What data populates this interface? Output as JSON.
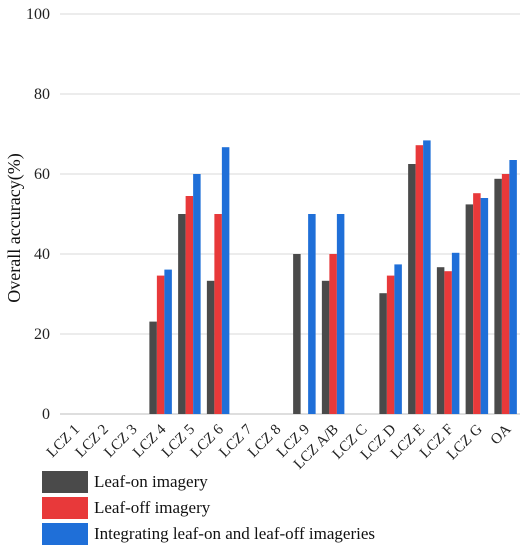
{
  "chart_data": {
    "type": "bar",
    "title": "",
    "xlabel": "",
    "ylabel": "Overall accuracy(%)",
    "ylim": [
      0,
      100
    ],
    "yticks": [
      0,
      20,
      40,
      60,
      80,
      100
    ],
    "grid": "horizontal",
    "legend_position": "bottom-left",
    "categories": [
      "LCZ 1",
      "LCZ 2",
      "LCZ 3",
      "LCZ 4",
      "LCZ 5",
      "LCZ 6",
      "LCZ 7",
      "LCZ 8",
      "LCZ 9",
      "LCZ A/B",
      "LCZ C",
      "LCZ D",
      "LCZ E",
      "LCZ F",
      "LCZ G",
      "OA"
    ],
    "series": [
      {
        "name": "Leaf-on imagery",
        "color": "#4a4a4a",
        "values": [
          0,
          0,
          0,
          23.1,
          50.0,
          33.3,
          0,
          0,
          40.0,
          33.3,
          0,
          30.2,
          62.5,
          36.7,
          52.4,
          58.8
        ]
      },
      {
        "name": "Leaf-off imagery",
        "color": "#e8393a",
        "values": [
          0,
          0,
          0,
          34.6,
          54.5,
          50.0,
          0,
          0,
          0,
          40.0,
          0,
          34.6,
          67.2,
          35.7,
          55.2,
          60.0
        ]
      },
      {
        "name": "Integrating leaf-on and leaf-off imageries",
        "color": "#1f6fd8",
        "values": [
          0,
          0,
          0,
          36.1,
          60.0,
          66.7,
          0,
          0,
          50.0,
          50.0,
          0,
          37.4,
          68.4,
          40.3,
          54.0,
          63.5
        ]
      }
    ]
  }
}
